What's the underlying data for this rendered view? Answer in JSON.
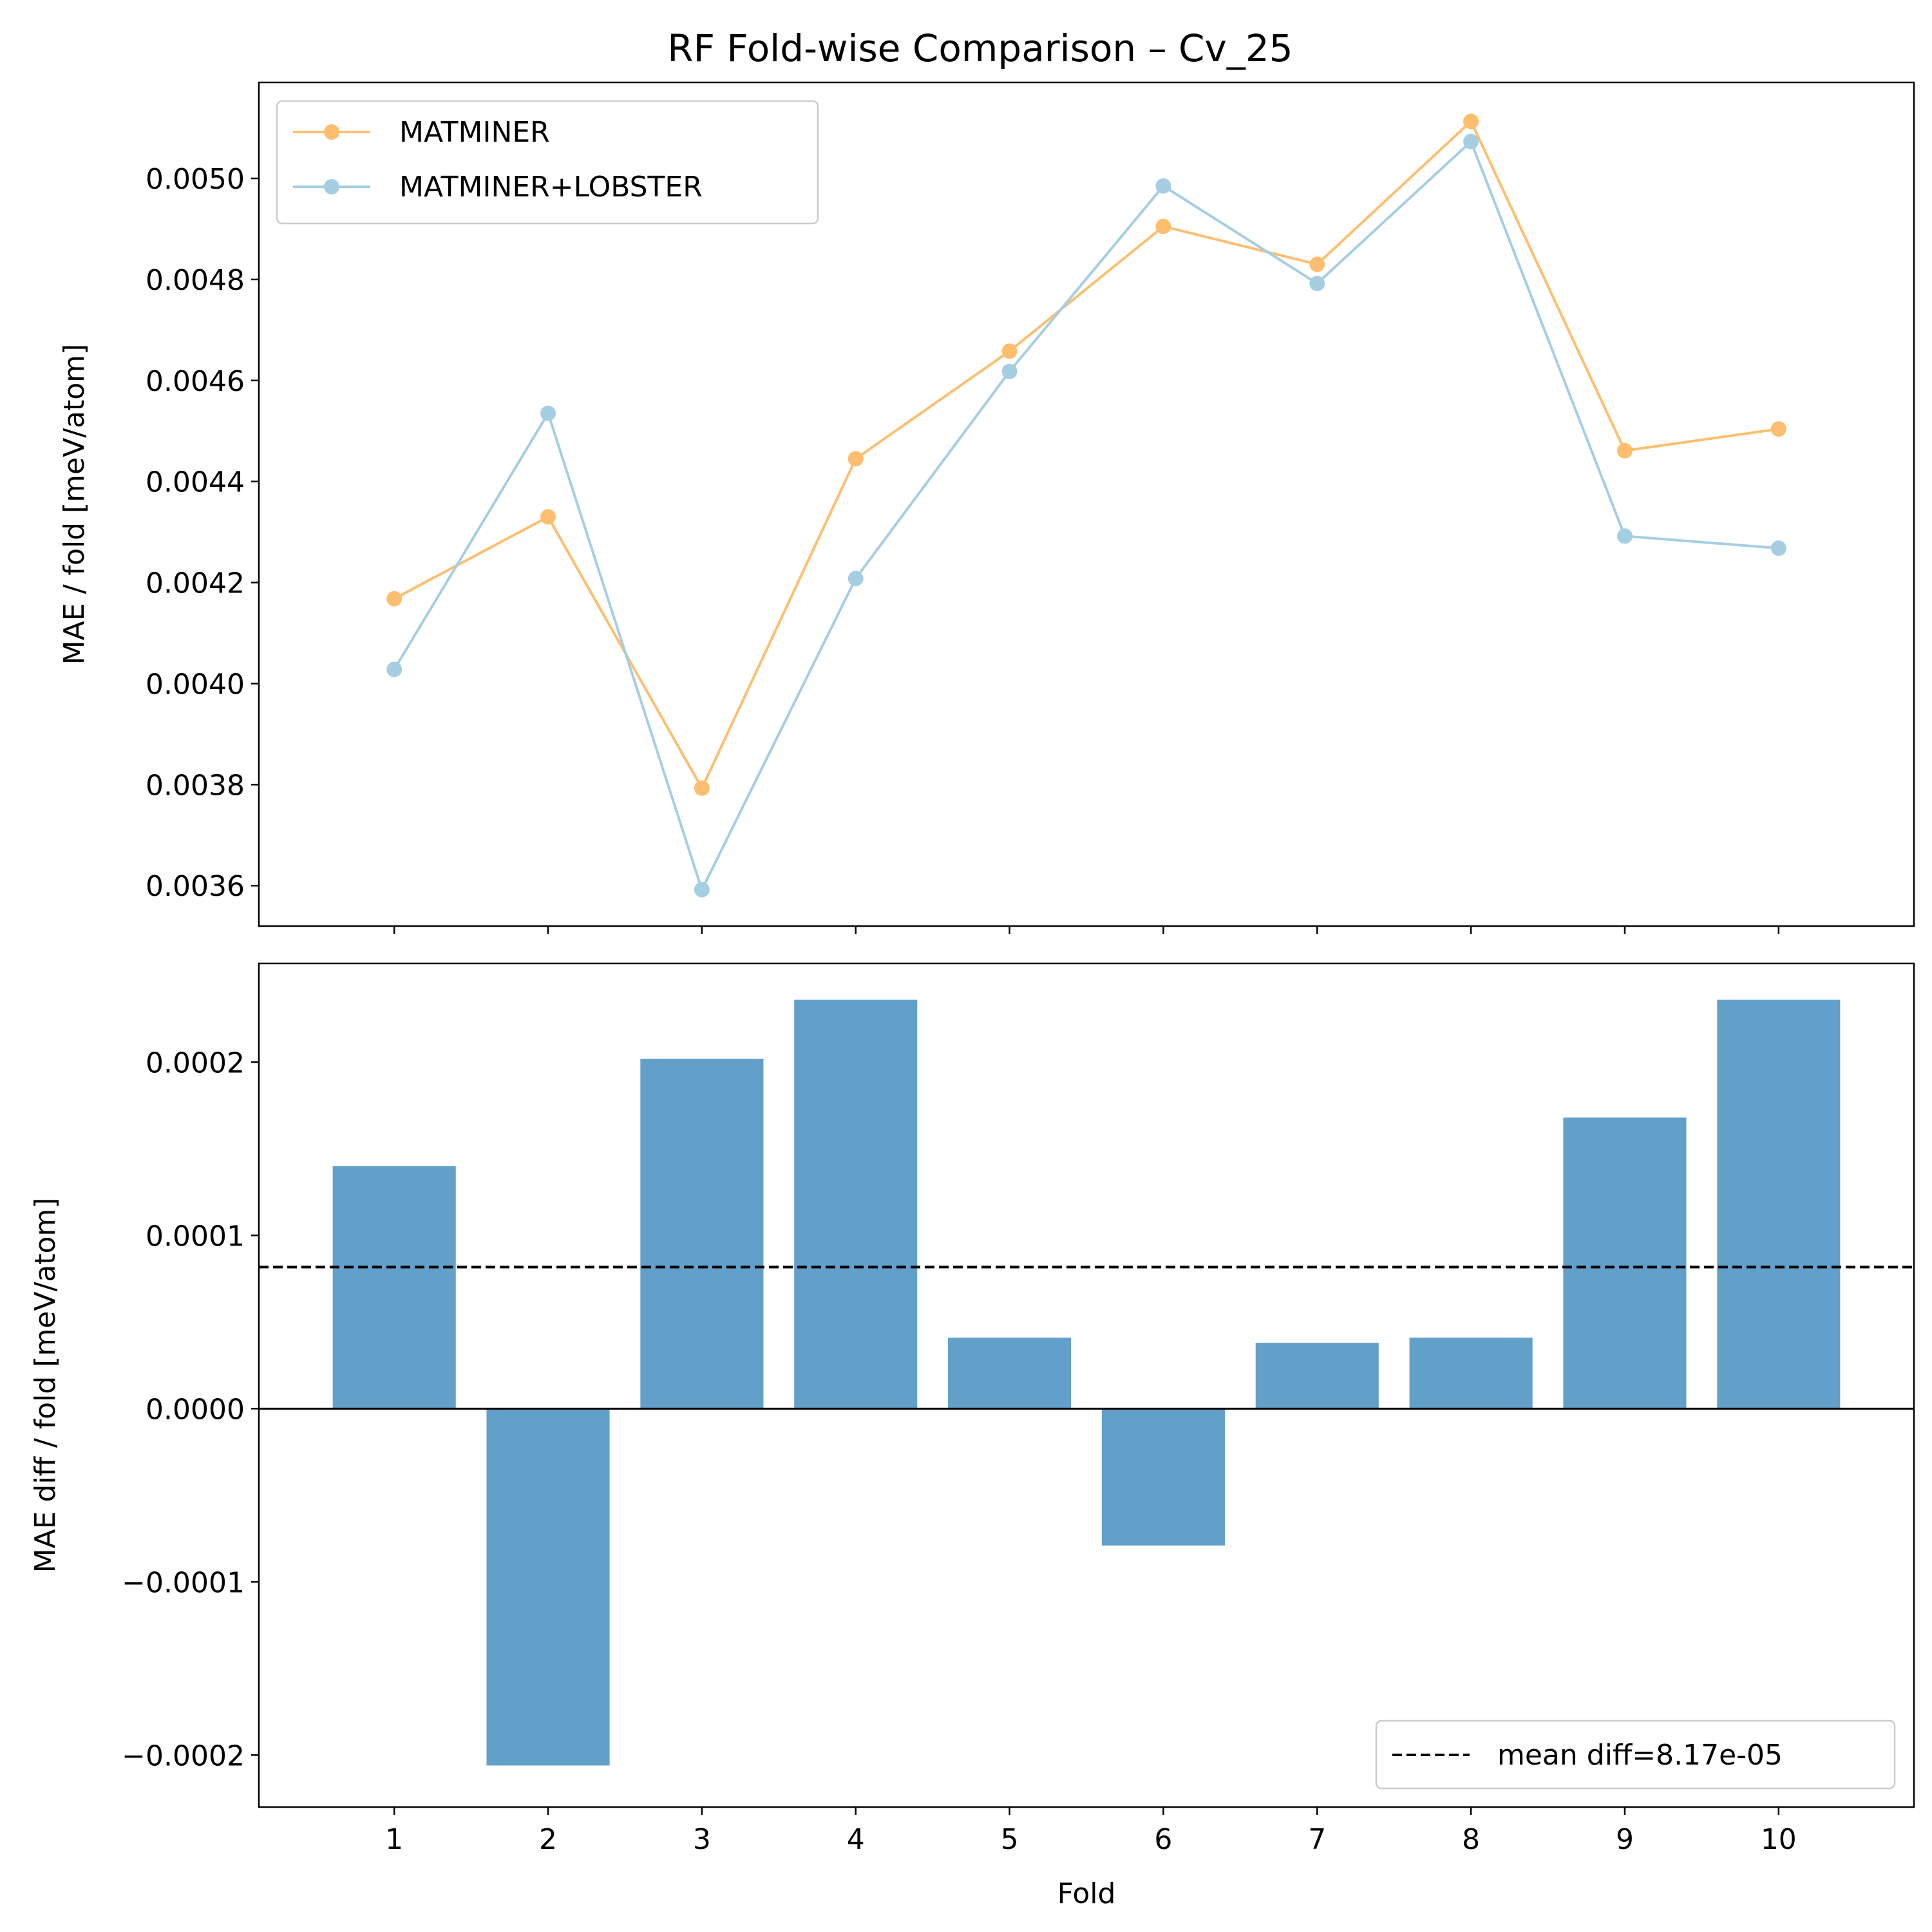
{
  "figure": {
    "title": "RF Fold-wise Comparison – Cv_25"
  },
  "chart_data": [
    {
      "type": "line",
      "xlabel": "",
      "ylabel": "MAE / fold [meV/atom]",
      "x": [
        1,
        2,
        3,
        4,
        5,
        6,
        7,
        8,
        9,
        10
      ],
      "ylim": [
        0.00352,
        0.00519
      ],
      "yticks": [
        0.0036,
        0.0038,
        0.004,
        0.0042,
        0.0044,
        0.0046,
        0.0048,
        0.005
      ],
      "ytick_labels": [
        "0.0036",
        "0.0038",
        "0.0040",
        "0.0042",
        "0.0044",
        "0.0046",
        "0.0048",
        "0.0050"
      ],
      "legend_position": "upper-left",
      "grid": false,
      "series": [
        {
          "name": "MATMINER",
          "color": "#fdbf6f",
          "values": [
            0.004168,
            0.00433,
            0.003793,
            0.004445,
            0.004658,
            0.004905,
            0.00483,
            0.005113,
            0.004461,
            0.004504
          ]
        },
        {
          "name": "MATMINER+LOBSTER",
          "color": "#a6cee3",
          "values": [
            0.004028,
            0.004535,
            0.003592,
            0.004208,
            0.004618,
            0.004985,
            0.004792,
            0.005073,
            0.004292,
            0.004268
          ]
        }
      ]
    },
    {
      "type": "bar",
      "xlabel": "Fold",
      "ylabel": "MAE diff / fold [meV/atom]",
      "categories": [
        "1",
        "2",
        "3",
        "4",
        "5",
        "6",
        "7",
        "8",
        "9",
        "10"
      ],
      "values": [
        0.00014,
        -0.000206,
        0.000202,
        0.000236,
        4.1e-05,
        -7.9e-05,
        3.8e-05,
        4.1e-05,
        0.000168,
        0.000236
      ],
      "bar_color": "#1f77b4",
      "bar_alpha": 0.7,
      "ylim": [
        -0.00023,
        0.000257
      ],
      "yticks": [
        -0.0002,
        -0.0001,
        0.0,
        0.0001,
        0.0002
      ],
      "ytick_labels": [
        "−0.0002",
        "−0.0001",
        "0.0000",
        "0.0001",
        "0.0002"
      ],
      "mean_line": {
        "value": 8.17e-05,
        "label": "mean diff=8.17e-05"
      },
      "legend_position": "lower-right",
      "grid": false
    }
  ]
}
